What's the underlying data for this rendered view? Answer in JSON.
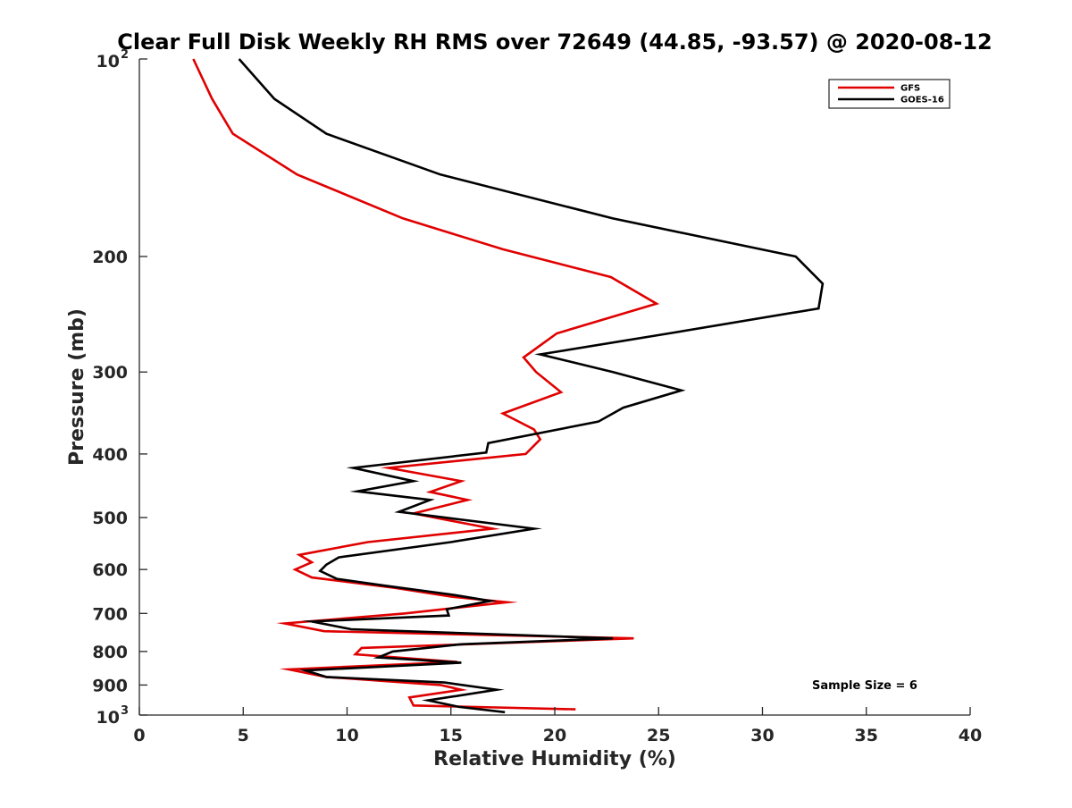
{
  "chart_data": {
    "type": "line",
    "title": "Clear Full Disk Weekly RH RMS over 72649 (44.85, -93.57) @ 2020-08-12",
    "xlabel": "Relative Humidity (%)",
    "ylabel": "Pressure (mb)",
    "xlim": [
      0,
      40
    ],
    "ylim": [
      100,
      1000
    ],
    "yscale": "log",
    "y_reversed": true,
    "grid": false,
    "legend_position": "top-right",
    "x_ticks": [
      0,
      5,
      10,
      15,
      20,
      25,
      30,
      35,
      40
    ],
    "x_tick_labels": [
      "0",
      "5",
      "10",
      "15",
      "20",
      "25",
      "30",
      "35",
      "40"
    ],
    "y_ticks": [
      100,
      200,
      300,
      400,
      500,
      600,
      700,
      800,
      900,
      1000
    ],
    "y_tick_labels": [
      {
        "base": "10",
        "exp": "2"
      },
      {
        "base": "200",
        "exp": ""
      },
      {
        "base": "300",
        "exp": ""
      },
      {
        "base": "400",
        "exp": ""
      },
      {
        "base": "500",
        "exp": ""
      },
      {
        "base": "600",
        "exp": ""
      },
      {
        "base": "700",
        "exp": ""
      },
      {
        "base": "800",
        "exp": ""
      },
      {
        "base": "900",
        "exp": ""
      },
      {
        "base": "10",
        "exp": "3"
      }
    ],
    "series": [
      {
        "name": "GFS",
        "color": "#e00000",
        "points": [
          [
            2.6,
            100
          ],
          [
            3.5,
            115
          ],
          [
            4.5,
            130
          ],
          [
            7.6,
            150
          ],
          [
            12.7,
            175
          ],
          [
            17.5,
            195
          ],
          [
            22.7,
            215
          ],
          [
            24.9,
            236
          ],
          [
            20.1,
            262
          ],
          [
            18.5,
            285
          ],
          [
            19.1,
            300
          ],
          [
            20.3,
            322
          ],
          [
            17.5,
            347
          ],
          [
            19.0,
            367
          ],
          [
            19.3,
            380
          ],
          [
            18.6,
            400
          ],
          [
            12.0,
            420
          ],
          [
            15.5,
            440
          ],
          [
            14.0,
            457
          ],
          [
            15.8,
            470
          ],
          [
            13.2,
            493
          ],
          [
            17.0,
            520
          ],
          [
            11.0,
            545
          ],
          [
            7.7,
            570
          ],
          [
            8.3,
            585
          ],
          [
            7.5,
            600
          ],
          [
            8.3,
            617
          ],
          [
            12.3,
            640
          ],
          [
            15.0,
            660
          ],
          [
            17.7,
            673
          ],
          [
            12.8,
            700
          ],
          [
            7.0,
            725
          ],
          [
            8.9,
            745
          ],
          [
            23.8,
            764
          ],
          [
            10.7,
            790
          ],
          [
            10.4,
            808
          ],
          [
            15.3,
            830
          ],
          [
            7.2,
            852
          ],
          [
            9.0,
            875
          ],
          [
            14.5,
            900
          ],
          [
            15.5,
            915
          ],
          [
            13.0,
            940
          ],
          [
            13.2,
            967
          ],
          [
            21.0,
            980
          ]
        ]
      },
      {
        "name": "GOES-16",
        "color": "#000000",
        "points": [
          [
            4.8,
            100
          ],
          [
            6.5,
            115
          ],
          [
            9.0,
            130
          ],
          [
            14.5,
            150
          ],
          [
            22.8,
            175
          ],
          [
            31.6,
            200
          ],
          [
            32.9,
            220
          ],
          [
            32.7,
            240
          ],
          [
            25.5,
            262
          ],
          [
            19.3,
            282
          ],
          [
            22.8,
            300
          ],
          [
            26.1,
            320
          ],
          [
            23.3,
            340
          ],
          [
            22.1,
            357
          ],
          [
            16.8,
            385
          ],
          [
            16.7,
            398
          ],
          [
            10.3,
            420
          ],
          [
            13.2,
            440
          ],
          [
            10.5,
            456
          ],
          [
            14.0,
            470
          ],
          [
            12.5,
            490
          ],
          [
            19.0,
            520
          ],
          [
            15.0,
            545
          ],
          [
            9.6,
            575
          ],
          [
            9.0,
            590
          ],
          [
            8.7,
            603
          ],
          [
            9.5,
            620
          ],
          [
            11.8,
            635
          ],
          [
            15.0,
            655
          ],
          [
            16.9,
            670
          ],
          [
            14.8,
            690
          ],
          [
            14.9,
            705
          ],
          [
            8.3,
            720
          ],
          [
            10.2,
            740
          ],
          [
            22.8,
            764
          ],
          [
            15.5,
            780
          ],
          [
            12.2,
            800
          ],
          [
            11.5,
            817
          ],
          [
            15.5,
            832
          ],
          [
            8.0,
            855
          ],
          [
            9.0,
            875
          ],
          [
            14.7,
            892
          ],
          [
            17.2,
            915
          ],
          [
            13.9,
            950
          ],
          [
            15.4,
            972
          ],
          [
            17.6,
            990
          ]
        ]
      }
    ],
    "annotation": "Sample Size = 6"
  }
}
